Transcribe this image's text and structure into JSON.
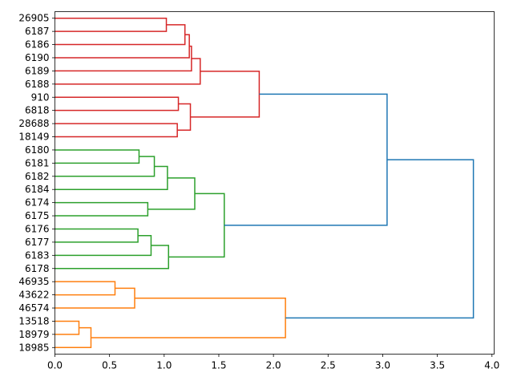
{
  "chart_data": {
    "type": "dendrogram",
    "orientation": "horizontal",
    "title": "",
    "xlabel": "",
    "ylabel": "",
    "xlim": [
      0,
      4.02
    ],
    "x_ticks": [
      0.0,
      0.5,
      1.0,
      1.5,
      2.0,
      2.5,
      3.0,
      3.5,
      4.0
    ],
    "x_tick_labels": [
      "0.0",
      "0.5",
      "1.0",
      "1.5",
      "2.0",
      "2.5",
      "3.0",
      "3.5",
      "4.0"
    ],
    "leaves_top_to_bottom": [
      "26905",
      "6187",
      "6186",
      "6190",
      "6189",
      "6188",
      "910",
      "6818",
      "28688",
      "18149",
      "6180",
      "6181",
      "6182",
      "6184",
      "6174",
      "6175",
      "6176",
      "6177",
      "6183",
      "6178",
      "46935",
      "43622",
      "46574",
      "13518",
      "18979",
      "18985"
    ],
    "colors": {
      "red": "#d62728",
      "green": "#2ca02c",
      "orange": "#ff7f0e",
      "blue": "#1f77b4"
    },
    "merges": [
      {
        "a": 0,
        "b": 1,
        "height": 1.02,
        "color": "red"
      },
      {
        "a": 26,
        "b": 2,
        "height": 1.19,
        "color": "red"
      },
      {
        "a": 27,
        "b": 3,
        "height": 1.23,
        "color": "red"
      },
      {
        "a": 28,
        "b": 4,
        "height": 1.25,
        "color": "red"
      },
      {
        "a": 29,
        "b": 5,
        "height": 1.33,
        "color": "red"
      },
      {
        "a": 6,
        "b": 7,
        "height": 1.13,
        "color": "red"
      },
      {
        "a": 8,
        "b": 9,
        "height": 1.12,
        "color": "red"
      },
      {
        "a": 31,
        "b": 32,
        "height": 1.24,
        "color": "red"
      },
      {
        "a": 30,
        "b": 33,
        "height": 1.87,
        "color": "red"
      },
      {
        "a": 10,
        "b": 11,
        "height": 0.77,
        "color": "green"
      },
      {
        "a": 35,
        "b": 12,
        "height": 0.91,
        "color": "green"
      },
      {
        "a": 36,
        "b": 13,
        "height": 1.03,
        "color": "green"
      },
      {
        "a": 14,
        "b": 15,
        "height": 0.85,
        "color": "green"
      },
      {
        "a": 37,
        "b": 38,
        "height": 1.28,
        "color": "green"
      },
      {
        "a": 16,
        "b": 17,
        "height": 0.76,
        "color": "green"
      },
      {
        "a": 40,
        "b": 18,
        "height": 0.88,
        "color": "green"
      },
      {
        "a": 41,
        "b": 19,
        "height": 1.04,
        "color": "green"
      },
      {
        "a": 39,
        "b": 42,
        "height": 1.55,
        "color": "green"
      },
      {
        "a": 34,
        "b": 43,
        "height": 3.04,
        "color": "blue"
      },
      {
        "a": 20,
        "b": 21,
        "height": 0.55,
        "color": "orange"
      },
      {
        "a": 45,
        "b": 22,
        "height": 0.73,
        "color": "orange"
      },
      {
        "a": 23,
        "b": 24,
        "height": 0.22,
        "color": "orange"
      },
      {
        "a": 47,
        "b": 25,
        "height": 0.33,
        "color": "orange"
      },
      {
        "a": 46,
        "b": 48,
        "height": 2.11,
        "color": "orange"
      },
      {
        "a": 44,
        "b": 49,
        "height": 3.83,
        "color": "blue"
      }
    ]
  }
}
